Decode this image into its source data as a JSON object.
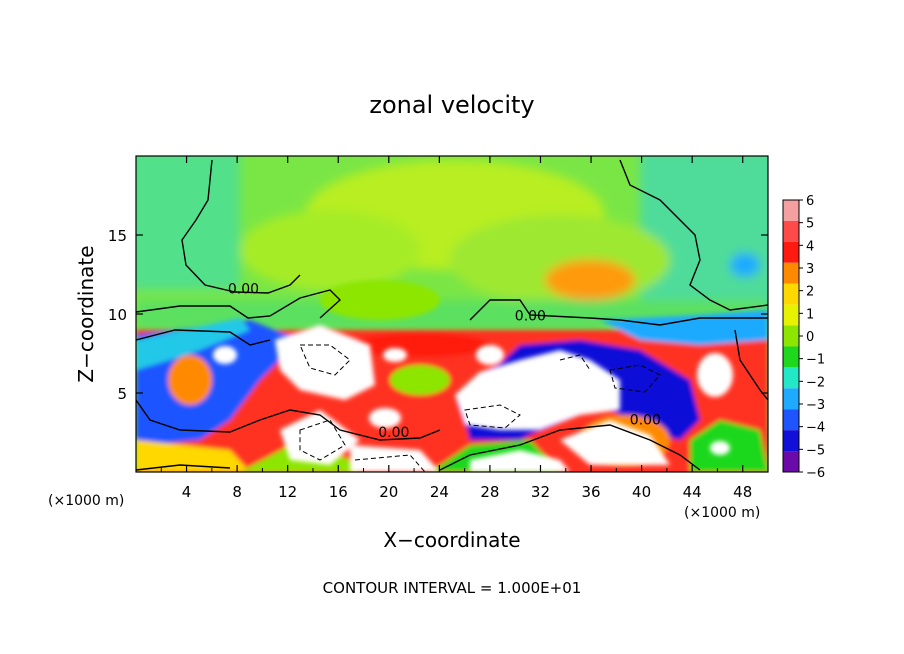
{
  "chart_data": {
    "type": "heatmap",
    "title": "zonal velocity",
    "xlabel": "X−coordinate",
    "ylabel": "Z−coordinate",
    "x_unit_label": "(×1000 m)",
    "y_unit_label": "(×1000 m)",
    "x_range": [
      0,
      50
    ],
    "y_range": [
      0,
      20
    ],
    "x_ticks": [
      4,
      8,
      12,
      16,
      20,
      24,
      28,
      32,
      36,
      40,
      44,
      48
    ],
    "x_tick_labels": [
      "4",
      "8",
      "12",
      "16",
      "20",
      "24",
      "28",
      "32",
      "36",
      "40",
      "44",
      "48"
    ],
    "y_ticks": [
      5,
      10,
      15
    ],
    "y_tick_labels": [
      "5",
      "10",
      "15"
    ],
    "contour_labels": [
      {
        "text": "0.00",
        "x": 8.5,
        "z": 11.3
      },
      {
        "text": "0.00",
        "x": 31.2,
        "z": 9.6
      },
      {
        "text": "0.00",
        "x": 20.4,
        "z": 2.2
      },
      {
        "text": "0.00",
        "x": 40.3,
        "z": 3.0
      }
    ],
    "colorbar": {
      "levels": [
        6,
        5,
        4,
        3,
        2,
        1,
        0,
        -1,
        -2,
        -3,
        -4,
        -5,
        -6
      ],
      "labels": [
        "6",
        "5",
        "4",
        "3",
        "2",
        "1",
        "0",
        "−1",
        "−2",
        "−3",
        "−4",
        "−5",
        "−6"
      ],
      "colors": [
        "#f4a0a0",
        "#ff4a4a",
        "#ff1a10",
        "#ff8a00",
        "#ffd800",
        "#e6f200",
        "#8ce600",
        "#1ed81e",
        "#22e8c8",
        "#1eaaff",
        "#1e55ff",
        "#1010d8",
        "#6a0aa8"
      ]
    },
    "footer": "CONTOUR INTERVAL = 1.000E+01"
  }
}
